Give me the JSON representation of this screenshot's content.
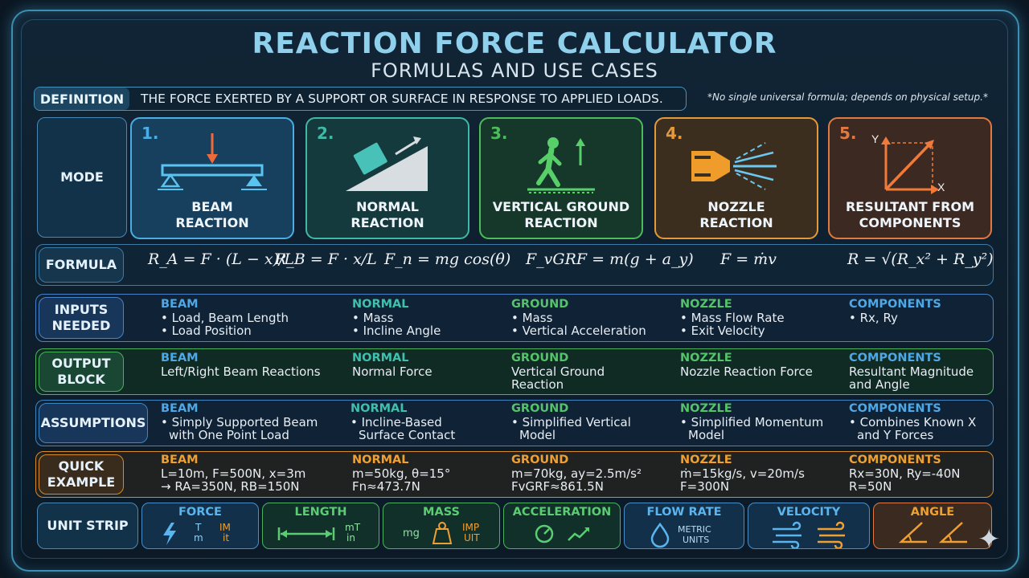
{
  "header": {
    "title": "REACTION FORCE CALCULATOR",
    "subtitle": "FORMULAS AND USE CASES"
  },
  "definition": {
    "label": "DEFINITION",
    "text": "THE FORCE EXERTED BY A SUPPORT OR SURFACE IN RESPONSE TO APPLIED LOADS.",
    "note": "*No single universal formula; depends on physical setup.*"
  },
  "mode": {
    "label": "MODE",
    "cards": [
      {
        "num": "1.",
        "line1": "BEAM",
        "line2": "REACTION"
      },
      {
        "num": "2.",
        "line1": "NORMAL",
        "line2": "REACTION"
      },
      {
        "num": "3.",
        "line1": "VERTICAL GROUND",
        "line2": "REACTION"
      },
      {
        "num": "4.",
        "line1": "NOZZLE",
        "line2": "REACTION"
      },
      {
        "num": "5.",
        "line1": "RESULTANT FROM",
        "line2": "COMPONENTS",
        "axis_y": "Y",
        "axis_x": "X"
      }
    ]
  },
  "formula": {
    "label": "FORMULA",
    "beam_a": "R_A = F · (L − x)/L",
    "beam_b": "R_B = F · x/L",
    "normal": "F_n = mg cos(θ)",
    "ground": "F_vGRF = m(g + a_y)",
    "nozzle": "F = ṁv",
    "resultant": "R = √(R_x² + R_y²)"
  },
  "inputs": {
    "label_1": "INPUTS",
    "label_2": "NEEDED",
    "cols": [
      {
        "head": "BEAM",
        "lines": [
          "• Load, Beam Length",
          "• Load Position"
        ]
      },
      {
        "head": "NORMAL",
        "lines": [
          "• Mass",
          "• Incline Angle"
        ]
      },
      {
        "head": "GROUND",
        "lines": [
          "• Mass",
          "• Vertical Acceleration"
        ]
      },
      {
        "head": "NOZZLE",
        "lines": [
          "• Mass Flow Rate",
          "• Exit Velocity"
        ]
      },
      {
        "head": "COMPONENTS",
        "lines": [
          "• Rx, Ry"
        ]
      }
    ]
  },
  "output": {
    "label_1": "OUTPUT",
    "label_2": "BLOCK",
    "cols": [
      {
        "head": "BEAM",
        "lines": [
          "Left/Right Beam Reactions"
        ]
      },
      {
        "head": "NORMAL",
        "lines": [
          "Normal Force"
        ]
      },
      {
        "head": "GROUND",
        "lines": [
          "Vertical Ground",
          "Reaction"
        ]
      },
      {
        "head": "NOZZLE",
        "lines": [
          "Nozzle Reaction Force"
        ]
      },
      {
        "head": "COMPONENTS",
        "lines": [
          "Resultant Magnitude",
          "and Angle"
        ]
      }
    ]
  },
  "assumptions": {
    "label": "ASSUMPTIONS",
    "cols": [
      {
        "head": "BEAM",
        "lines": [
          "• Simply Supported Beam",
          "with One Point Load"
        ]
      },
      {
        "head": "NORMAL",
        "lines": [
          "• Incline-Based",
          "Surface Contact"
        ]
      },
      {
        "head": "GROUND",
        "lines": [
          "• Simplified Vertical",
          "Model"
        ]
      },
      {
        "head": "NOZZLE",
        "lines": [
          "• Simplified Momentum",
          "Model"
        ]
      },
      {
        "head": "COMPONENTS",
        "lines": [
          "• Combines Known X",
          "and Y Forces"
        ]
      }
    ]
  },
  "example": {
    "label_1": "QUICK",
    "label_2": "EXAMPLE",
    "cols": [
      {
        "head": "BEAM",
        "lines": [
          "L=10m, F=500N, x=3m",
          "→ RA=350N, RB=150N"
        ]
      },
      {
        "head": "NORMAL",
        "lines": [
          "m=50kg, θ=15°",
          "Fn≈473.7N"
        ]
      },
      {
        "head": "GROUND",
        "lines": [
          "m=70kg, ay=2.5m/s²",
          "FvGRF≈861.5N"
        ]
      },
      {
        "head": "NOZZLE",
        "lines": [
          "ṁ=15kg/s, v=20m/s",
          "F=300N"
        ]
      },
      {
        "head": "COMPONENTS",
        "lines": [
          "Rx=30N, Ry=-40N",
          "R=50N"
        ]
      }
    ]
  },
  "units": {
    "label": "UNIT STRIP",
    "items": [
      {
        "title": "FORCE",
        "a": "T",
        "b": "m",
        "c": "IM",
        "d": "it"
      },
      {
        "title": "LENGTH",
        "a": "mT",
        "b": "in"
      },
      {
        "title": "MASS",
        "a": "mg",
        "b": "IMP",
        "c": "UIT"
      },
      {
        "title": "ACCELERATION"
      },
      {
        "title": "FLOW RATE",
        "a": "METRIC",
        "b": "UNITS"
      },
      {
        "title": "VELOCITY"
      },
      {
        "title": "ANGLE"
      }
    ]
  },
  "colors": {
    "beam": "#3aa0d8",
    "normal": "#3fb8a6",
    "ground": "#4cbc5a",
    "nozzle": "#e49a3a",
    "resultant": "#e07a40",
    "mode_label": "#4a87b4",
    "inputs_band": "#4a82c8",
    "output_band": "#4cb260",
    "assumptions_band": "#3d86c2",
    "example_band": "#d98a2a"
  }
}
